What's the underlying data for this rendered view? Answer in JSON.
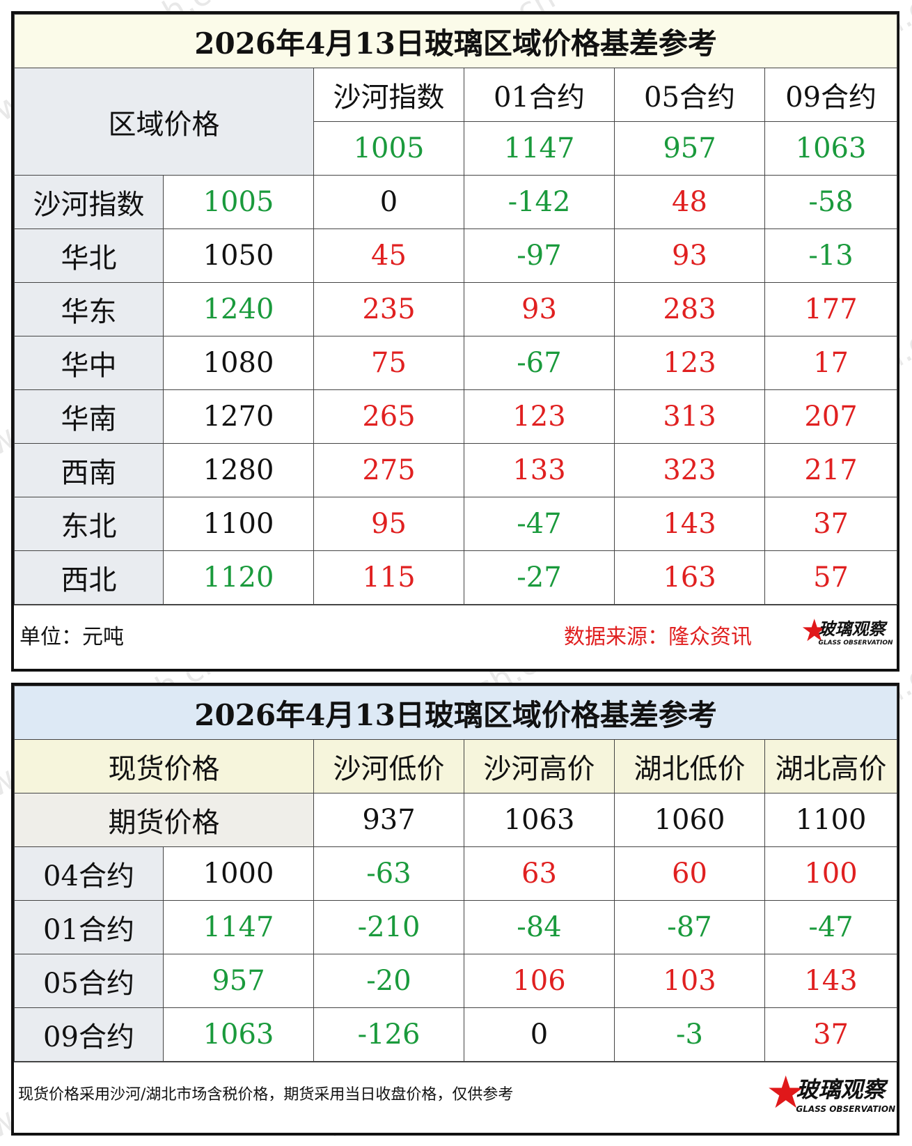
{
  "table1": {
    "title": "2026年4月13日玻璃区域价格基差参考",
    "corner": "区域价格",
    "headers": [
      "沙河指数",
      "01合约",
      "05合约",
      "09合约"
    ],
    "header_values": [
      "1005",
      "1147",
      "957",
      "1063"
    ],
    "rows": [
      {
        "region": "沙河指数",
        "price": "1005",
        "cells": [
          "0",
          "-142",
          "48",
          "-58"
        ]
      },
      {
        "region": "华北",
        "price": "1050",
        "cells": [
          "45",
          "-97",
          "93",
          "-13"
        ]
      },
      {
        "region": "华东",
        "price": "1240",
        "cells": [
          "235",
          "93",
          "283",
          "177"
        ]
      },
      {
        "region": "华中",
        "price": "1080",
        "cells": [
          "75",
          "-67",
          "123",
          "17"
        ]
      },
      {
        "region": "华南",
        "price": "1270",
        "cells": [
          "265",
          "123",
          "313",
          "207"
        ]
      },
      {
        "region": "西南",
        "price": "1280",
        "cells": [
          "275",
          "133",
          "323",
          "217"
        ]
      },
      {
        "region": "东北",
        "price": "1100",
        "cells": [
          "95",
          "-47",
          "143",
          "37"
        ]
      },
      {
        "region": "西北",
        "price": "1120",
        "cells": [
          "115",
          "-27",
          "163",
          "57"
        ]
      }
    ],
    "unit": "单位：元吨",
    "source": "数据来源：隆众资讯"
  },
  "table2": {
    "title": "2026年4月13日玻璃区域价格基差参考",
    "corner_top": "现货价格",
    "corner_bottom": "期货价格",
    "headers": [
      "沙河低价",
      "沙河高价",
      "湖北低价",
      "湖北高价"
    ],
    "header_values": [
      "937",
      "1063",
      "1060",
      "1100"
    ],
    "rows": [
      {
        "contract": "04合约",
        "price": "1000",
        "cells": [
          "-63",
          "63",
          "60",
          "100"
        ]
      },
      {
        "contract": "01合约",
        "price": "1147",
        "cells": [
          "-210",
          "-84",
          "-87",
          "-47"
        ]
      },
      {
        "contract": "05合约",
        "price": "957",
        "cells": [
          "-20",
          "106",
          "103",
          "143"
        ]
      },
      {
        "contract": "09合约",
        "price": "1063",
        "cells": [
          "-126",
          "0",
          "-3",
          "37"
        ]
      }
    ],
    "note": "现货价格采用沙河/湖北市场含税价格，期货采用当日收盘价格，仅供参考"
  },
  "logo": {
    "cn": "玻璃观察",
    "en": "GLASS OBSERVATION"
  },
  "watermark": "www.glass.sh.cn",
  "colors": {
    "positive": "#e02020",
    "negative": "#1a9a3c",
    "neutral": "#111111"
  }
}
